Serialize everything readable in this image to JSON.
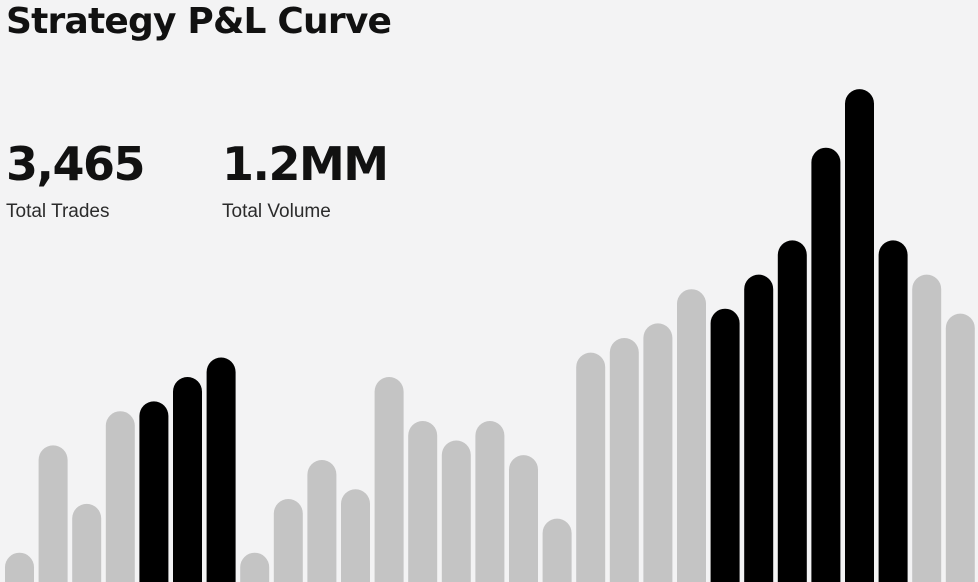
{
  "header": {
    "title": "Strategy P&L Curve"
  },
  "stats": [
    {
      "value": "3,465",
      "label": "Total Trades"
    },
    {
      "value": "1.2MM",
      "label": "Total Volume"
    }
  ],
  "colors": {
    "background": "#f3f3f4",
    "bar_active": "#000000",
    "bar_inactive": "#c4c4c4"
  },
  "chart_data": {
    "type": "bar",
    "title": "",
    "xlabel": "",
    "ylabel": "",
    "grid": false,
    "axes_visible": false,
    "ylim": [
      0,
      100
    ],
    "values": [
      6,
      28,
      16,
      35,
      37,
      42,
      46,
      6,
      17,
      25,
      19,
      42,
      33,
      29,
      33,
      26,
      13,
      47,
      50,
      53,
      60,
      56,
      63,
      70,
      89,
      101,
      70,
      63,
      55
    ],
    "highlighted": [
      false,
      false,
      false,
      false,
      true,
      true,
      true,
      false,
      false,
      false,
      false,
      false,
      false,
      false,
      false,
      false,
      false,
      false,
      false,
      false,
      false,
      true,
      true,
      true,
      true,
      true,
      true,
      false,
      false
    ]
  }
}
